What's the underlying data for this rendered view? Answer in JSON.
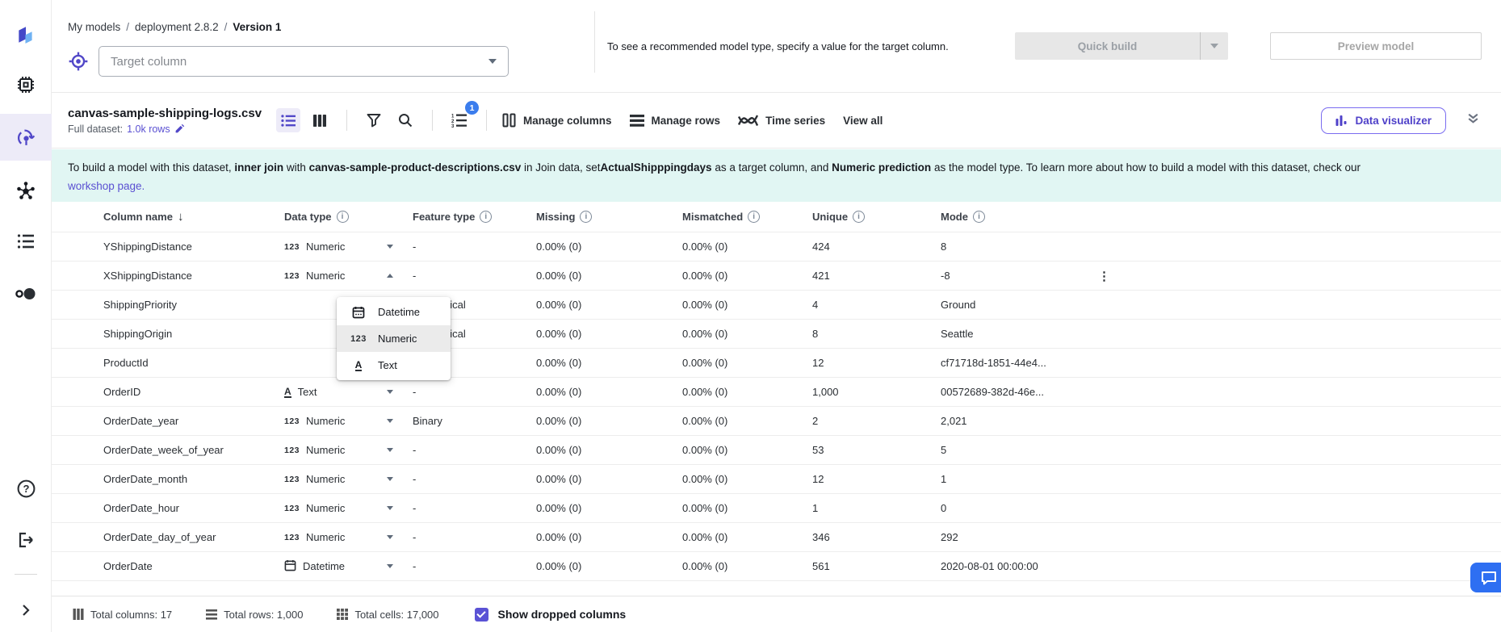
{
  "colors": {
    "accent": "#5a50d2",
    "badge_blue": "#3b7ded",
    "banner_bg": "#e1f6f3",
    "chat_blue": "#2e6ff2",
    "selected_bg": "#edebf8"
  },
  "breadcrumb": {
    "items": [
      "My models",
      "deployment 2.8.2",
      "Version 1"
    ],
    "separator": "/"
  },
  "target": {
    "placeholder": "Target column"
  },
  "hint": "To see a recommended model type, specify a value for the target column.",
  "actions": {
    "quick_build": "Quick build",
    "preview_model": "Preview model"
  },
  "dataset": {
    "name": "canvas-sample-shipping-logs.csv",
    "full_dataset_label": "Full dataset:",
    "rows_link": "1.0k rows"
  },
  "toolbar": {
    "sort_badge": "1",
    "manage_columns": "Manage columns",
    "manage_rows": "Manage rows",
    "time_series": "Time series",
    "view_all": "View all",
    "data_visualizer": "Data visualizer"
  },
  "banner": {
    "t1": "To build a model with this dataset, ",
    "b1": "inner join",
    "t2": " with ",
    "b2": "canvas-sample-product-descriptions.csv",
    "t3": " in Join data, set",
    "b3": "ActualShipppingdays",
    "t4": " as a target column, and ",
    "b4": "Numeric prediction",
    "t5": " as the model type. To learn more about how to build a model with this dataset, check our ",
    "link": "workshop page."
  },
  "table": {
    "headers": [
      "Column name",
      "Data type",
      "Feature type",
      "Missing",
      "Mismatched",
      "Unique",
      "Mode"
    ],
    "rows": [
      {
        "name": "YShippingDistance",
        "dtype": "Numeric",
        "dtype_icon": "123",
        "caret": "down",
        "feature": "-",
        "missing": "0.00% (0)",
        "mismatched": "0.00% (0)",
        "unique": "424",
        "mode": "8",
        "kebab": false
      },
      {
        "name": "XShippingDistance",
        "dtype": "Numeric",
        "dtype_icon": "123",
        "caret": "up",
        "feature": "-",
        "missing": "0.00% (0)",
        "mismatched": "0.00% (0)",
        "unique": "421",
        "mode": "-8",
        "kebab": true
      },
      {
        "name": "ShippingPriority",
        "dtype": "",
        "dtype_icon": null,
        "caret": null,
        "feature": "Categorical",
        "missing": "0.00% (0)",
        "mismatched": "0.00% (0)",
        "unique": "4",
        "mode": "Ground",
        "kebab": false
      },
      {
        "name": "ShippingOrigin",
        "dtype": "",
        "dtype_icon": null,
        "caret": null,
        "feature": "Categorical",
        "missing": "0.00% (0)",
        "mismatched": "0.00% (0)",
        "unique": "8",
        "mode": "Seattle",
        "kebab": false
      },
      {
        "name": "ProductId",
        "dtype": "",
        "dtype_icon": null,
        "caret": null,
        "feature": "-",
        "missing": "0.00% (0)",
        "mismatched": "0.00% (0)",
        "unique": "12",
        "mode": "cf71718d-1851-44e4...",
        "kebab": false
      },
      {
        "name": "OrderID",
        "dtype": "Text",
        "dtype_icon": "text",
        "caret": "down",
        "feature": "-",
        "missing": "0.00% (0)",
        "mismatched": "0.00% (0)",
        "unique": "1,000",
        "mode": "00572689-382d-46e...",
        "kebab": false
      },
      {
        "name": "OrderDate_year",
        "dtype": "Numeric",
        "dtype_icon": "123",
        "caret": "down",
        "feature": "Binary",
        "missing": "0.00% (0)",
        "mismatched": "0.00% (0)",
        "unique": "2",
        "mode": "2,021",
        "kebab": false
      },
      {
        "name": "OrderDate_week_of_year",
        "dtype": "Numeric",
        "dtype_icon": "123",
        "caret": "down",
        "feature": "-",
        "missing": "0.00% (0)",
        "mismatched": "0.00% (0)",
        "unique": "53",
        "mode": "5",
        "kebab": false
      },
      {
        "name": "OrderDate_month",
        "dtype": "Numeric",
        "dtype_icon": "123",
        "caret": "down",
        "feature": "-",
        "missing": "0.00% (0)",
        "mismatched": "0.00% (0)",
        "unique": "12",
        "mode": "1",
        "kebab": false
      },
      {
        "name": "OrderDate_hour",
        "dtype": "Numeric",
        "dtype_icon": "123",
        "caret": "down",
        "feature": "-",
        "missing": "0.00% (0)",
        "mismatched": "0.00% (0)",
        "unique": "1",
        "mode": "0",
        "kebab": false
      },
      {
        "name": "OrderDate_day_of_year",
        "dtype": "Numeric",
        "dtype_icon": "123",
        "caret": "down",
        "feature": "-",
        "missing": "0.00% (0)",
        "mismatched": "0.00% (0)",
        "unique": "346",
        "mode": "292",
        "kebab": false
      },
      {
        "name": "OrderDate",
        "dtype": "Datetime",
        "dtype_icon": "calendar",
        "caret": "down",
        "feature": "-",
        "missing": "0.00% (0)",
        "mismatched": "0.00% (0)",
        "unique": "561",
        "mode": "2020-08-01 00:00:00",
        "kebab": false
      }
    ]
  },
  "menu": {
    "items": [
      {
        "icon": "calendar",
        "label": "Datetime",
        "selected": false
      },
      {
        "icon": "123",
        "label": "Numeric",
        "selected": true
      },
      {
        "icon": "text",
        "label": "Text",
        "selected": false
      }
    ]
  },
  "footer": {
    "items": [
      {
        "icon": "columns",
        "text": "Total columns: 17"
      },
      {
        "icon": "rows",
        "text": "Total rows: 1,000"
      },
      {
        "icon": "cells",
        "text": "Total cells: 17,000"
      }
    ],
    "show_dropped": "Show dropped columns"
  }
}
